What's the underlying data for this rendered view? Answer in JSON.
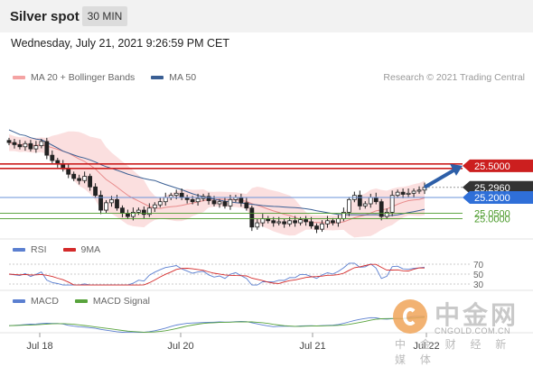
{
  "header": {
    "title": "Silver spot",
    "timeframe": "30 MIN"
  },
  "date_line": "Wednesday, July 21, 2021 9:26:59 PM CET",
  "legend_main": [
    {
      "label": "MA 20 + Bollinger Bands",
      "color": "#f4a3a3"
    },
    {
      "label": "MA 50",
      "color": "#3a5f94"
    }
  ],
  "legend_rsi": [
    {
      "label": "RSI",
      "color": "#5b7fd0"
    },
    {
      "label": "9MA",
      "color": "#d42a2a"
    }
  ],
  "legend_macd": [
    {
      "label": "MACD",
      "color": "#5b7fd0"
    },
    {
      "label": "MACD Signal",
      "color": "#58a33c"
    }
  ],
  "copyright": "Research © 2021 Trading Central",
  "watermark": {
    "name": "中金网",
    "url": "CNGOLD.COM.CN",
    "sub": "中 金 财 经 新 媒 体"
  },
  "chart_data": {
    "type": "candlestick",
    "title": "Silver spot",
    "timeframe": "30 MIN",
    "x_ticks": [
      "Jul 18",
      "Jul 20",
      "Jul 21",
      "Jul 22"
    ],
    "price_range": [
      24.85,
      26.25
    ],
    "levels": [
      {
        "label": "25.5000",
        "value": 25.5,
        "color": "#cc1f1f",
        "style": "resistance"
      },
      {
        "label": "25.2960",
        "value": 25.296,
        "color": "#333333",
        "style": "last-price"
      },
      {
        "label": "25.2000",
        "value": 25.2,
        "color": "#2f6fd8",
        "style": "pivot"
      },
      {
        "label": "25.0500",
        "value": 25.05,
        "color": "#4a9a2a",
        "style": "support"
      },
      {
        "label": "25.0000",
        "value": 25.0,
        "color": "#4a9a2a",
        "style": "support"
      }
    ],
    "close_series": [
      25.72,
      25.7,
      25.68,
      25.71,
      25.66,
      25.69,
      25.73,
      25.6,
      25.55,
      25.52,
      25.47,
      25.42,
      25.38,
      25.36,
      25.4,
      25.3,
      25.22,
      25.08,
      25.15,
      25.18,
      25.1,
      25.05,
      25.02,
      25.06,
      25.08,
      25.04,
      25.1,
      25.13,
      25.16,
      25.2,
      25.22,
      25.24,
      25.2,
      25.18,
      25.16,
      25.19,
      25.21,
      25.17,
      25.14,
      25.16,
      25.12,
      25.18,
      25.2,
      25.15,
      25.1,
      24.92,
      24.96,
      25.0,
      24.98,
      24.96,
      24.97,
      24.95,
      24.98,
      24.96,
      24.99,
      24.97,
      24.93,
      24.9,
      24.95,
      24.98,
      24.96,
      25.0,
      25.06,
      25.18,
      25.22,
      25.12,
      25.14,
      25.2,
      25.16,
      25.02,
      25.06,
      25.22,
      25.25,
      25.23,
      25.24,
      25.26,
      25.27,
      25.296
    ],
    "rsi_levels": [
      70,
      50,
      30
    ],
    "arrow": "up"
  }
}
